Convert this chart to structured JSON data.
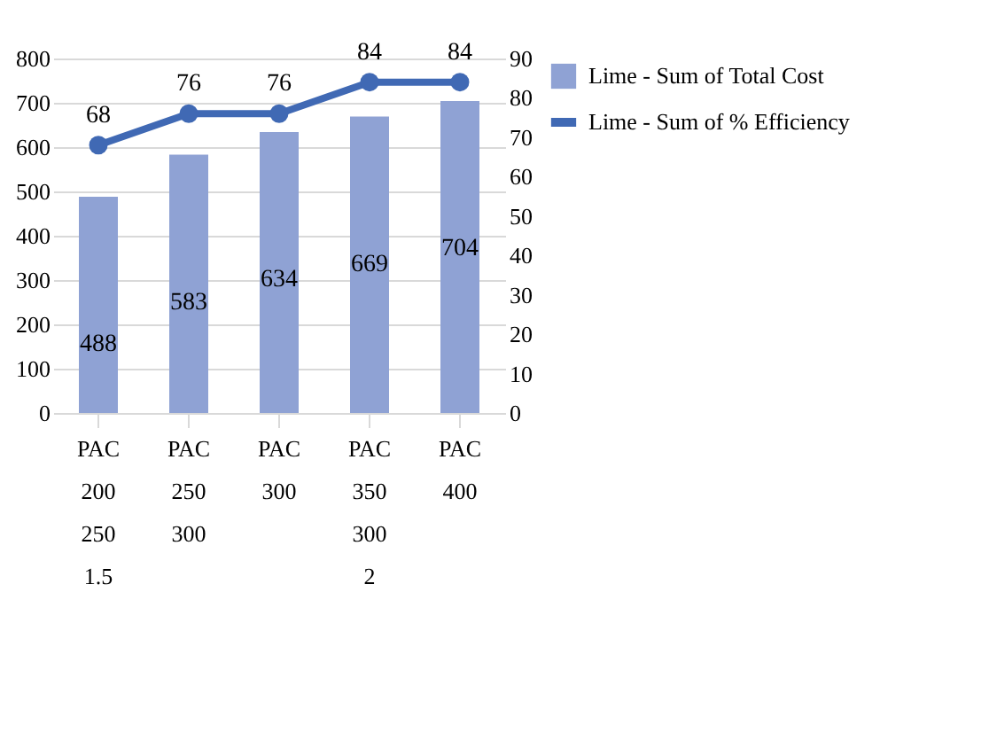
{
  "chart_data": {
    "type": "bar",
    "categories": [
      "PAC\n200\n250\n1.5",
      "PAC\n250\n300\n",
      "PAC\n300\n\n",
      "PAC\n350\n300\n2",
      "PAC\n400\n\n"
    ],
    "series": [
      {
        "name": "Lime - Sum of Total Cost",
        "type": "bar",
        "color": "#8fa2d4",
        "values": [
          488,
          583,
          634,
          669,
          704
        ]
      },
      {
        "name": "Lime - Sum of % Efficiency",
        "type": "line",
        "axis": "y2",
        "color": "#4069b4",
        "values": [
          68,
          76,
          76,
          84,
          84
        ],
        "marker": "circle",
        "line_style": "solid"
      }
    ],
    "ylim": [
      0,
      800
    ],
    "yticks": [
      0,
      100,
      200,
      300,
      400,
      500,
      600,
      700,
      800
    ],
    "y2lim": [
      0,
      90
    ],
    "y2ticks": [
      0,
      10,
      20,
      30,
      40,
      50,
      60,
      70,
      80,
      90
    ],
    "data_labels": true,
    "grid": "y",
    "legend": "right"
  }
}
